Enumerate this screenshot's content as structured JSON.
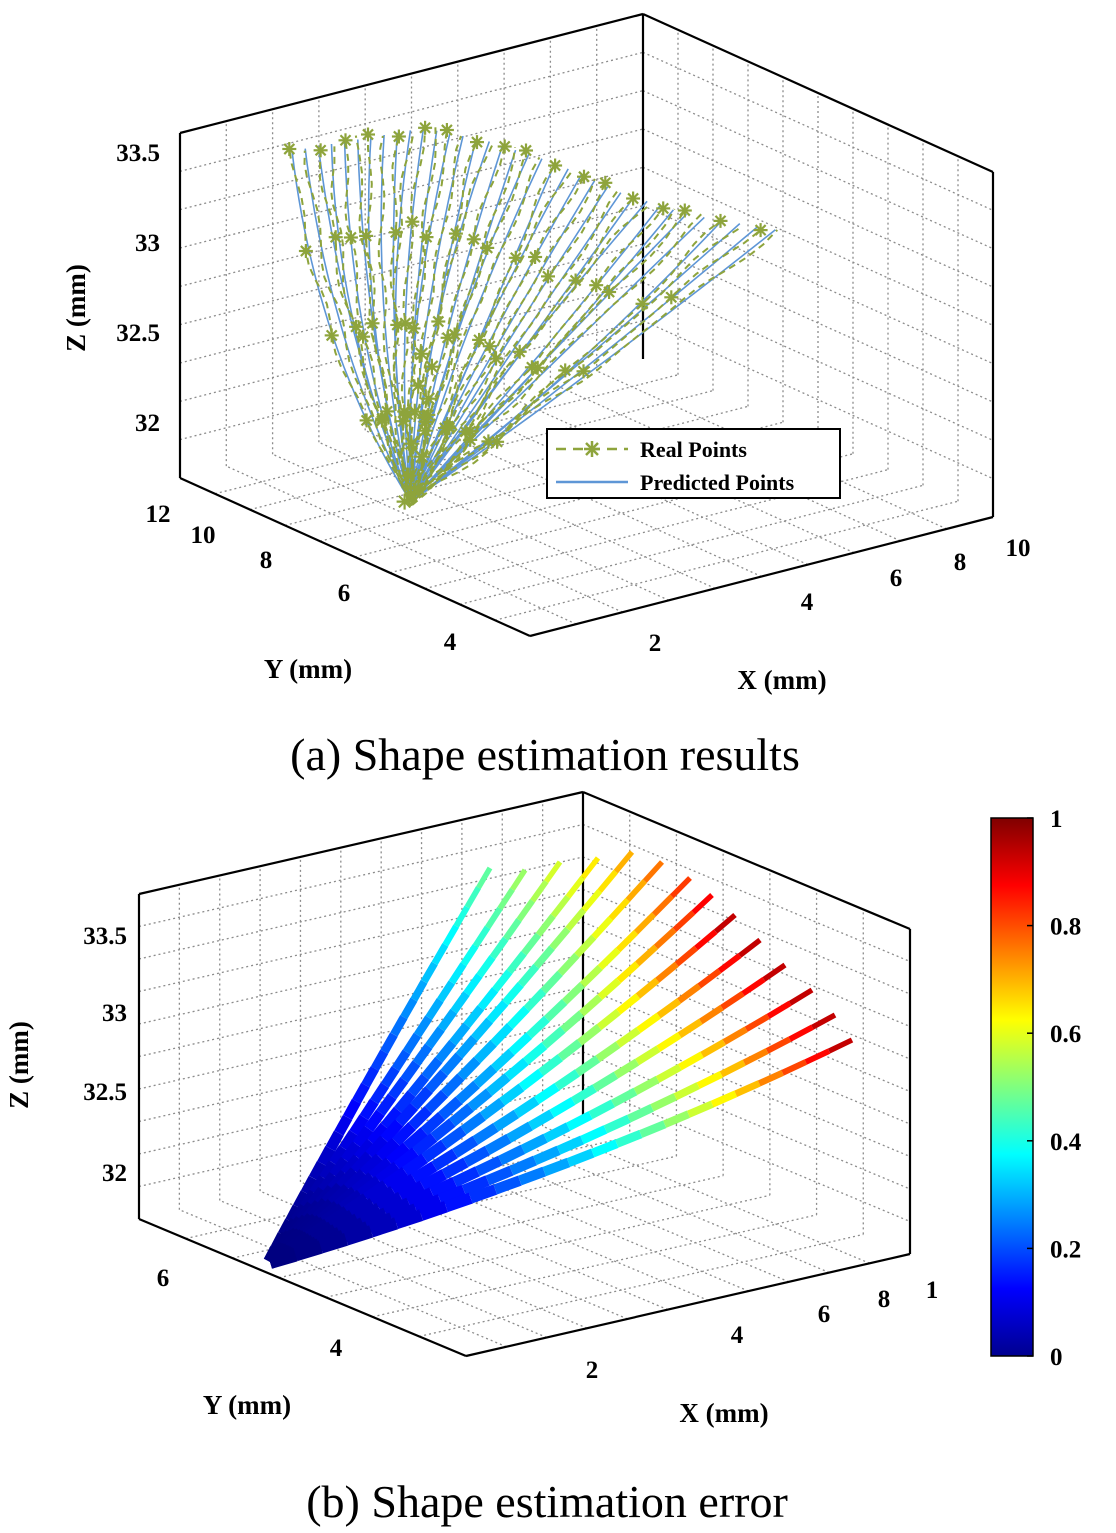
{
  "chart_data": [
    {
      "panel": "a",
      "type": "line3d",
      "caption": "(a) Shape estimation results",
      "xlabel": "X (mm)",
      "ylabel": "Y (mm)",
      "zlabel": "Z (mm)",
      "xticks": [
        "2",
        "4",
        "6",
        "8",
        "10"
      ],
      "yticks": [
        "4",
        "6",
        "8",
        "10",
        "12"
      ],
      "zticks": [
        "32",
        "32.5",
        "33",
        "33.5"
      ],
      "xlim": [
        0,
        10
      ],
      "ylim": [
        3,
        12
      ],
      "zlim": [
        31.7,
        33.8
      ],
      "grid": true,
      "legend_position": "inside-lower-right",
      "series": [
        {
          "name": "Real Points",
          "color": "#8EA43C",
          "marker": "asterisk",
          "linestyle": "dashed"
        },
        {
          "name": "Predicted Points",
          "color": "#5E96D6",
          "marker": "none",
          "linestyle": "solid"
        }
      ],
      "base": {
        "x": 1.2,
        "y": 7.5,
        "z": 31.95
      },
      "curve_tips": [
        {
          "x": 2.0,
          "y": 11.5,
          "z": 33.6
        },
        {
          "x": 3.0,
          "y": 11.0,
          "z": 33.65
        },
        {
          "x": 4.0,
          "y": 10.5,
          "z": 33.7
        },
        {
          "x": 5.0,
          "y": 10.0,
          "z": 33.6
        },
        {
          "x": 6.0,
          "y": 9.5,
          "z": 33.45
        },
        {
          "x": 7.0,
          "y": 9.0,
          "z": 33.25
        },
        {
          "x": 8.0,
          "y": 8.5,
          "z": 33.1
        },
        {
          "x": 9.5,
          "y": 8.0,
          "z": 32.95
        }
      ]
    },
    {
      "panel": "b",
      "type": "surface3d",
      "caption": "(b) Shape estimation error",
      "xlabel": "X (mm)",
      "ylabel": "Y (mm)",
      "zlabel": "Z (mm)",
      "xticks": [
        "2",
        "4",
        "6",
        "8",
        "1"
      ],
      "yticks": [
        "4",
        "6"
      ],
      "zticks": [
        "32",
        "32.5",
        "33",
        "33.5"
      ],
      "xlim": [
        0,
        10
      ],
      "ylim": [
        3,
        7
      ],
      "zlim": [
        31.7,
        33.8
      ],
      "grid": true,
      "colormap": "jet",
      "colorbar_ticks": [
        "0",
        "0.2",
        "0.4",
        "0.6",
        "0.8",
        "1"
      ],
      "colorbar_range": [
        0,
        1
      ],
      "error_range": [
        0,
        1
      ]
    }
  ]
}
